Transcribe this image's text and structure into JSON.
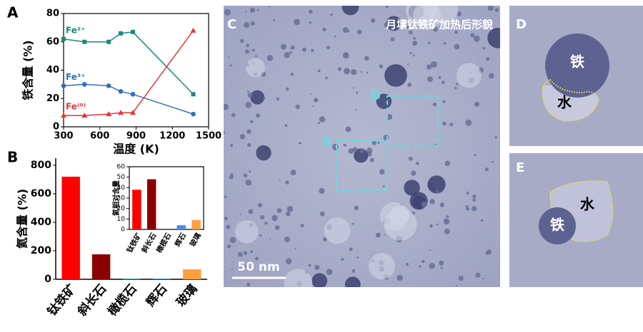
{
  "chart_data": [
    {
      "type": "line",
      "panel_label": "A",
      "xlabel": "温度 (K)",
      "ylabel": "铁含量 (%)",
      "x": [
        300,
        473,
        673,
        773,
        873,
        1373
      ],
      "series": [
        {
          "name": "Fe²⁺",
          "color": "#1b8a7e",
          "marker": "square",
          "values": [
            62,
            60,
            60,
            66,
            67,
            23
          ]
        },
        {
          "name": "Fe³⁺",
          "color": "#2f6fc0",
          "marker": "circle",
          "values": [
            29,
            30,
            29,
            25,
            23,
            9
          ]
        },
        {
          "name": "Fe⁽⁰⁾",
          "color": "#e8343a",
          "marker": "triangle",
          "values": [
            8,
            8,
            9,
            10,
            10,
            68
          ]
        }
      ],
      "xlim": [
        300,
        1500
      ],
      "xticks": [
        300,
        600,
        900,
        1200,
        1500
      ],
      "ylim": [
        0,
        80
      ],
      "yticks": [
        0,
        20,
        40,
        60,
        80
      ]
    },
    {
      "type": "bar",
      "panel_label": "B",
      "ylabel": "氦含量 (%)",
      "categories": [
        "钛铁矿",
        "斜长石",
        "橄榄石",
        "辉石",
        "玻璃"
      ],
      "values": [
        720,
        175,
        5,
        5,
        70
      ],
      "colors": [
        "#ff0000",
        "#8b0000",
        "#3fb5a8",
        "#4a8fe0",
        "#ffa040"
      ],
      "ylim": [
        0,
        850
      ],
      "yticks": [
        0,
        200,
        400,
        600,
        800
      ]
    },
    {
      "type": "bar",
      "ylabel": "氦相对含量",
      "categories": [
        "钛铁矿",
        "斜长石",
        "橄榄石",
        "辉石",
        "玻璃"
      ],
      "values": [
        38,
        48,
        0,
        4,
        9
      ],
      "colors": [
        "#ff0000",
        "#8b0000",
        "#3fb5a8",
        "#4a8fe0",
        "#ffa040"
      ],
      "ylim": [
        0,
        60
      ],
      "yticks": [
        0,
        10,
        20,
        30,
        40,
        50,
        60
      ]
    }
  ],
  "panels": {
    "C": {
      "label": "C",
      "title": "月壤钛铁矿加热后形貌",
      "scale_bar": "50 nm"
    },
    "D": {
      "label": "D",
      "iron": "铁",
      "water": "水"
    },
    "E": {
      "label": "E",
      "iron": "铁",
      "water": "水"
    }
  }
}
